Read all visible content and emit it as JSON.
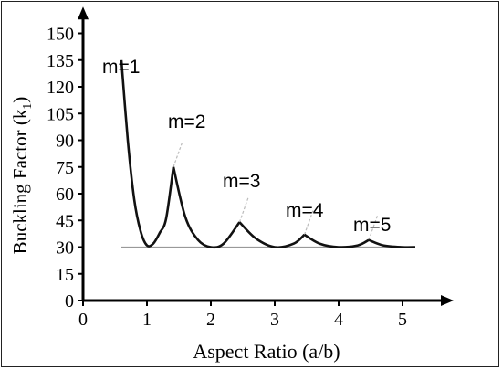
{
  "chart_data": {
    "type": "line",
    "title": "",
    "xlabel": "Aspect Ratio (a/b)",
    "ylabel": "Buckling Factor (k",
    "ylabel_sub": "1",
    "ylabel_close": ")",
    "xlim": [
      0,
      5.8
    ],
    "ylim": [
      0,
      165
    ],
    "x_ticks": [
      0,
      1,
      2,
      3,
      4,
      5
    ],
    "x_tick_labels": [
      "0",
      "1",
      "2",
      "3",
      "4",
      "5"
    ],
    "y_ticks": [
      0,
      15,
      30,
      45,
      60,
      75,
      90,
      105,
      120,
      135,
      150
    ],
    "y_tick_labels": [
      "0",
      "15",
      "30",
      "45",
      "60",
      "75",
      "90",
      "105",
      "120",
      "135",
      "150"
    ],
    "baseline_k": 30,
    "curve_color": "#111111",
    "extension_color": "#bbbbbb",
    "series": [
      {
        "m": 1,
        "label": "m=1",
        "x": [
          0.6,
          0.7,
          0.8,
          0.9,
          1.0,
          1.1,
          1.2,
          1.3,
          1.414
        ],
        "y": [
          135,
          90,
          57,
          39,
          31,
          32,
          38,
          46,
          75
        ]
      },
      {
        "m": 2,
        "label": "m=2",
        "x": [
          1.414,
          1.6,
          1.8,
          2.0,
          2.2,
          2.449
        ],
        "y": [
          75,
          47,
          34,
          30,
          32,
          44
        ]
      },
      {
        "m": 3,
        "label": "m=3",
        "x": [
          2.449,
          2.7,
          3.0,
          3.3,
          3.464
        ],
        "y": [
          44,
          35,
          30,
          32,
          37
        ]
      },
      {
        "m": 4,
        "label": "m=4",
        "x": [
          3.464,
          3.7,
          4.0,
          4.3,
          4.472
        ],
        "y": [
          37,
          32,
          30,
          31,
          34
        ]
      },
      {
        "m": 5,
        "label": "m=5",
        "x": [
          4.472,
          4.7,
          5.0,
          5.2
        ],
        "y": [
          34,
          31,
          30,
          30
        ]
      }
    ]
  }
}
